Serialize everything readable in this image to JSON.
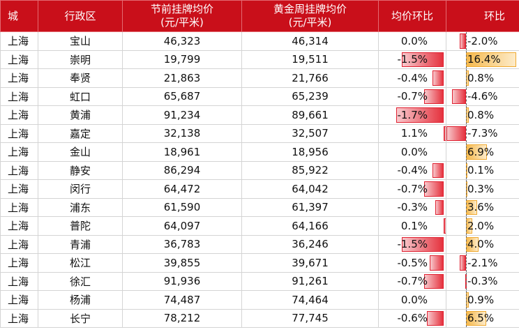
{
  "header": {
    "city": "城",
    "district": "行政区",
    "pre_price_line1": "节前挂牌均价",
    "pre_price_line2": "(元/平米)",
    "golden_price_line1": "黄金周挂牌均价",
    "golden_price_line2": "(元/平米)",
    "mom": "均价环比",
    "mom2": "环比"
  },
  "colors": {
    "header_bg": "#c90f1a",
    "neg_bar": "#e5323e",
    "pos_bar": "#f5b94d"
  },
  "rows": [
    {
      "city": "上海",
      "district": "宝山",
      "pre": "46,323",
      "golden": "46,314",
      "mom": "0.0%",
      "mom_v": 0.0,
      "mom2": "-2.0%",
      "mom2_v": -2.0
    },
    {
      "city": "上海",
      "district": "崇明",
      "pre": "19,799",
      "golden": "19,511",
      "mom": "-1.5%",
      "mom_v": -1.5,
      "mom2": "16.4%",
      "mom2_v": 16.4
    },
    {
      "city": "上海",
      "district": "奉贤",
      "pre": "21,863",
      "golden": "21,766",
      "mom": "-0.4%",
      "mom_v": -0.4,
      "mom2": "0.8%",
      "mom2_v": 0.8
    },
    {
      "city": "上海",
      "district": "虹口",
      "pre": "65,687",
      "golden": "65,239",
      "mom": "-0.7%",
      "mom_v": -0.7,
      "mom2": "-4.6%",
      "mom2_v": -4.6
    },
    {
      "city": "上海",
      "district": "黄浦",
      "pre": "91,234",
      "golden": "89,661",
      "mom": "-1.7%",
      "mom_v": -1.7,
      "mom2": "0.8%",
      "mom2_v": 0.8
    },
    {
      "city": "上海",
      "district": "嘉定",
      "pre": "32,138",
      "golden": "32,507",
      "mom": "1.1%",
      "mom_v": 1.1,
      "mom2": "-7.3%",
      "mom2_v": -7.3
    },
    {
      "city": "上海",
      "district": "金山",
      "pre": "18,961",
      "golden": "18,956",
      "mom": "0.0%",
      "mom_v": 0.0,
      "mom2": "6.9%",
      "mom2_v": 6.9
    },
    {
      "city": "上海",
      "district": "静安",
      "pre": "86,294",
      "golden": "85,922",
      "mom": "-0.4%",
      "mom_v": -0.4,
      "mom2": "0.1%",
      "mom2_v": 0.1
    },
    {
      "city": "上海",
      "district": "闵行",
      "pre": "64,472",
      "golden": "64,042",
      "mom": "-0.7%",
      "mom_v": -0.7,
      "mom2": "0.3%",
      "mom2_v": 0.3
    },
    {
      "city": "上海",
      "district": "浦东",
      "pre": "61,590",
      "golden": "61,397",
      "mom": "-0.3%",
      "mom_v": -0.3,
      "mom2": "3.6%",
      "mom2_v": 3.6
    },
    {
      "city": "上海",
      "district": "普陀",
      "pre": "64,097",
      "golden": "64,166",
      "mom": "0.1%",
      "mom_v": 0.1,
      "mom2": "2.0%",
      "mom2_v": 2.0
    },
    {
      "city": "上海",
      "district": "青浦",
      "pre": "36,783",
      "golden": "36,246",
      "mom": "-1.5%",
      "mom_v": -1.5,
      "mom2": "4.0%",
      "mom2_v": 4.0
    },
    {
      "city": "上海",
      "district": "松江",
      "pre": "39,855",
      "golden": "39,671",
      "mom": "-0.5%",
      "mom_v": -0.5,
      "mom2": "-2.1%",
      "mom2_v": -2.1
    },
    {
      "city": "上海",
      "district": "徐汇",
      "pre": "91,936",
      "golden": "91,261",
      "mom": "-0.7%",
      "mom_v": -0.7,
      "mom2": "-0.3%",
      "mom2_v": -0.3
    },
    {
      "city": "上海",
      "district": "杨浦",
      "pre": "74,487",
      "golden": "74,464",
      "mom": "0.0%",
      "mom_v": 0.0,
      "mom2": "0.9%",
      "mom2_v": 0.9
    },
    {
      "city": "上海",
      "district": "长宁",
      "pre": "78,212",
      "golden": "77,745",
      "mom": "-0.6%",
      "mom_v": -0.6,
      "mom2": "6.5%",
      "mom2_v": 6.5
    }
  ]
}
